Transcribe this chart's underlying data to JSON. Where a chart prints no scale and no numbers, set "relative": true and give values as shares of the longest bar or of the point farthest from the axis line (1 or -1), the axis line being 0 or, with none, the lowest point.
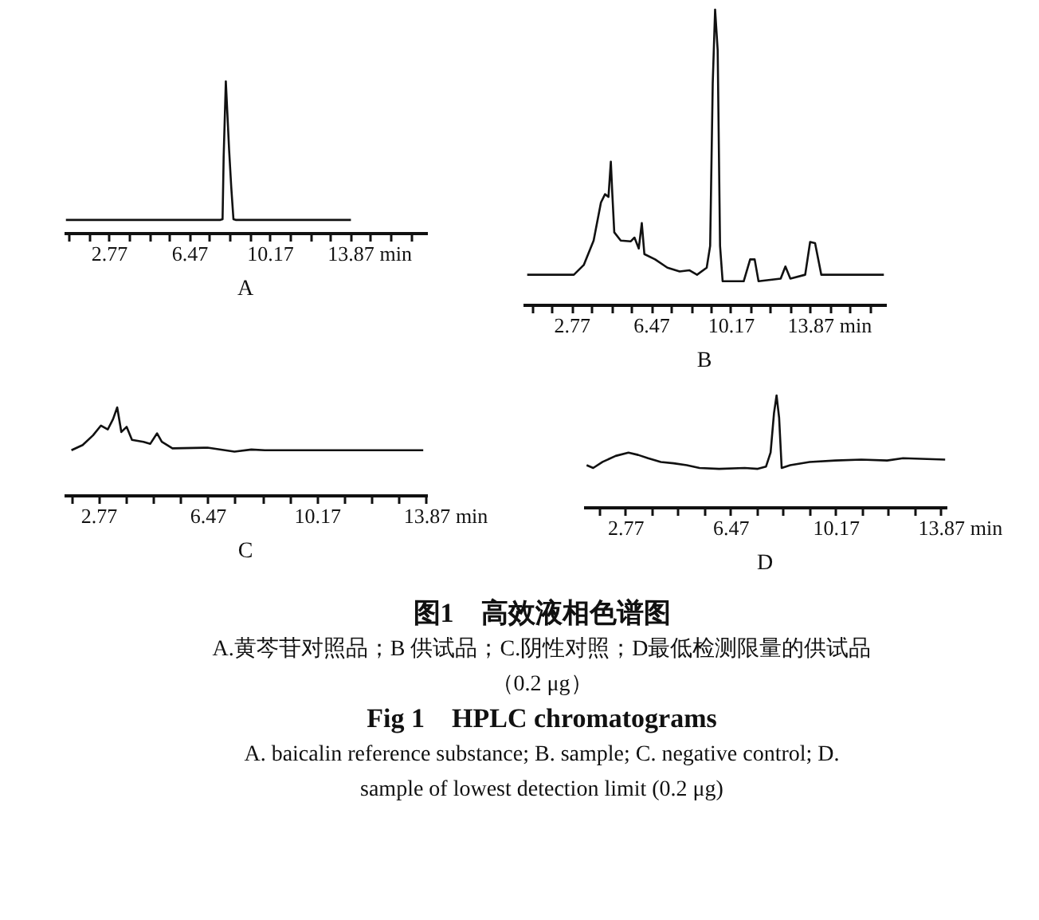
{
  "chart_data": [
    {
      "type": "line",
      "title": "A",
      "xlabel": "min",
      "relative": true,
      "tick_labels": "x",
      "xlim": [
        0.7,
        17.4
      ],
      "xticks": [
        {
          "value": 0.92,
          "label": null
        },
        {
          "value": 1.845,
          "label": null
        },
        2.77,
        {
          "value": 3.695,
          "label": null
        },
        {
          "value": 4.62,
          "label": null
        },
        {
          "value": 5.545,
          "label": null
        },
        6.47,
        {
          "value": 7.395,
          "label": null
        },
        {
          "value": 8.32,
          "label": null
        },
        {
          "value": 9.245,
          "label": null
        },
        10.17,
        {
          "value": 11.095,
          "label": null
        },
        {
          "value": 12.02,
          "label": null
        },
        {
          "value": 12.945,
          "label": null
        },
        13.87,
        {
          "value": 14.795,
          "label": null
        },
        {
          "value": 15.72,
          "label": null
        },
        {
          "value": 16.645,
          "label": null
        }
      ],
      "x": [
        0.8,
        7.9,
        8.0,
        8.05,
        8.15,
        8.3,
        8.4,
        8.5,
        8.6,
        13.9
      ],
      "series": [
        {
          "color": "#111111",
          "values": [
            0.085,
            0.085,
            0.09,
            0.5,
            1.0,
            0.55,
            0.3,
            0.09,
            0.085,
            0.085
          ]
        }
      ]
    },
    {
      "type": "line",
      "title": "B",
      "xlabel": "min",
      "relative": true,
      "tick_labels": "x",
      "xlim": [
        0.5,
        17.4
      ],
      "xticks": [
        {
          "value": 0.92,
          "label": null
        },
        {
          "value": 1.845,
          "label": null
        },
        2.77,
        {
          "value": 3.695,
          "label": null
        },
        {
          "value": 4.62,
          "label": null
        },
        {
          "value": 5.545,
          "label": null
        },
        6.47,
        {
          "value": 7.395,
          "label": null
        },
        {
          "value": 8.32,
          "label": null
        },
        {
          "value": 9.245,
          "label": null
        },
        10.17,
        {
          "value": 11.095,
          "label": null
        },
        {
          "value": 12.02,
          "label": null
        },
        {
          "value": 12.945,
          "label": null
        },
        13.87,
        {
          "value": 14.795,
          "label": null
        },
        {
          "value": 15.72,
          "label": null
        },
        {
          "value": 16.645,
          "label": null
        }
      ],
      "x": [
        0.71,
        2.88,
        3.34,
        3.8,
        4.14,
        4.33,
        4.49,
        4.6,
        4.67,
        4.76,
        5.06,
        5.52,
        5.7,
        5.9,
        6.04,
        6.16,
        6.66,
        7.23,
        7.8,
        8.26,
        8.61,
        9.06,
        9.22,
        9.34,
        9.45,
        9.57,
        9.68,
        9.8,
        10.78,
        11.08,
        11.29,
        11.47,
        12.5,
        12.72,
        12.95,
        13.64,
        13.87,
        14.1,
        14.39,
        17.3
      ],
      "series": [
        {
          "color": "#111111",
          "values": [
            0.101,
            0.101,
            0.134,
            0.217,
            0.346,
            0.374,
            0.365,
            0.484,
            0.374,
            0.245,
            0.217,
            0.214,
            0.227,
            0.19,
            0.276,
            0.171,
            0.153,
            0.125,
            0.112,
            0.116,
            0.101,
            0.125,
            0.199,
            0.751,
            1.0,
            0.862,
            0.199,
            0.079,
            0.079,
            0.153,
            0.153,
            0.079,
            0.088,
            0.129,
            0.088,
            0.101,
            0.212,
            0.208,
            0.101,
            0.101
          ]
        }
      ]
    },
    {
      "type": "line",
      "title": "C",
      "xlabel": "min",
      "relative": true,
      "tick_labels": "x",
      "xlim": [
        1.6,
        13.9
      ],
      "xticks": [
        {
          "value": 1.845,
          "label": null
        },
        2.77,
        {
          "value": 3.695,
          "label": null
        },
        {
          "value": 4.62,
          "label": null
        },
        {
          "value": 5.545,
          "label": null
        },
        6.47,
        {
          "value": 7.395,
          "label": null
        },
        {
          "value": 8.32,
          "label": null
        },
        {
          "value": 9.245,
          "label": null
        },
        10.17,
        {
          "value": 11.095,
          "label": null
        },
        {
          "value": 12.02,
          "label": null
        },
        {
          "value": 12.945,
          "label": null
        },
        13.87
      ],
      "x": [
        1.86,
        2.24,
        2.59,
        2.86,
        3.09,
        3.27,
        3.41,
        3.55,
        3.73,
        3.91,
        4.3,
        4.53,
        4.76,
        4.92,
        5.28,
        6.47,
        7.38,
        7.95,
        8.41,
        9.21,
        13.77
      ],
      "series": [
        {
          "color": "#111111",
          "values": [
            0.511,
            0.57,
            0.681,
            0.793,
            0.748,
            0.867,
            1.0,
            0.719,
            0.778,
            0.63,
            0.607,
            0.585,
            0.704,
            0.607,
            0.533,
            0.541,
            0.496,
            0.519,
            0.511,
            0.511,
            0.511
          ]
        }
      ]
    },
    {
      "type": "line",
      "title": "D",
      "xlabel": "min",
      "relative": true,
      "tick_labels": "x",
      "xlim": [
        1.29,
        14.07
      ],
      "xticks": [
        {
          "value": 1.845,
          "label": null
        },
        2.77,
        {
          "value": 3.695,
          "label": null
        },
        {
          "value": 4.62,
          "label": null
        },
        {
          "value": 5.545,
          "label": null
        },
        6.47,
        {
          "value": 7.395,
          "label": null
        },
        {
          "value": 8.32,
          "label": null
        },
        {
          "value": 9.245,
          "label": null
        },
        10.17,
        {
          "value": 11.095,
          "label": null
        },
        {
          "value": 12.02,
          "label": null
        },
        {
          "value": 12.945,
          "label": null
        },
        13.87
      ],
      "x": [
        1.41,
        1.64,
        1.97,
        2.43,
        2.88,
        3.22,
        3.57,
        4.02,
        4.47,
        4.93,
        5.38,
        6.07,
        6.97,
        7.43,
        7.72,
        7.88,
        8.0,
        8.09,
        8.18,
        8.27,
        8.57,
        9.25,
        10.16,
        11.07,
        11.98,
        12.54,
        14.02
      ],
      "series": [
        {
          "color": "#111111",
          "values": [
            0.375,
            0.35,
            0.404,
            0.458,
            0.488,
            0.467,
            0.438,
            0.404,
            0.392,
            0.375,
            0.35,
            0.342,
            0.35,
            0.342,
            0.363,
            0.488,
            0.842,
            1.0,
            0.8,
            0.35,
            0.375,
            0.404,
            0.417,
            0.425,
            0.417,
            0.438,
            0.425
          ]
        }
      ]
    },
    {
      "type": "other",
      "title": "图1　高效液相色谱图",
      "annotations": [
        "A.黄芩苷对照品；B 供试品；C.阴性对照；D最低检测限量的供试品",
        "（0.2 μg）"
      ]
    },
    {
      "type": "other",
      "title": "Fig 1　HPLC chromatograms",
      "annotations": [
        "A. baicalin reference substance; B. sample; C. negative control; D.",
        "sample of lowest detection limit (0.2 μg)"
      ]
    }
  ]
}
